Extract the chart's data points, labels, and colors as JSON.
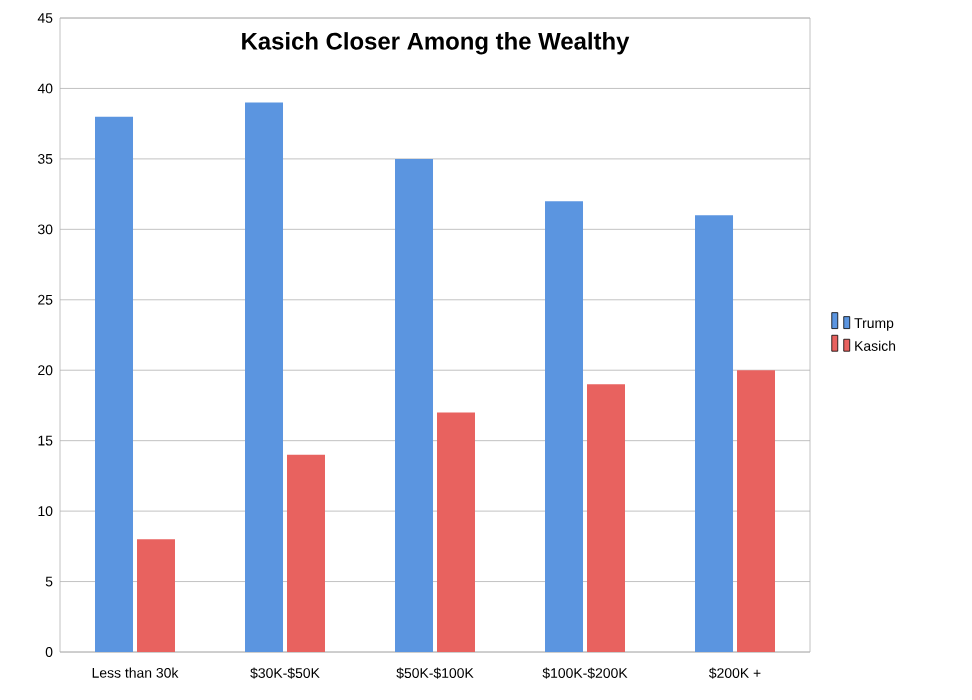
{
  "chart_data": {
    "type": "bar",
    "title": "Kasich Closer Among the Wealthy",
    "categories": [
      "Less than 30k",
      "$30K-$50K",
      "$50K-$100K",
      "$100K-$200K",
      "$200K +"
    ],
    "series": [
      {
        "name": "Trump",
        "color": "#5b95e0",
        "values": [
          38,
          39,
          35,
          32,
          31
        ]
      },
      {
        "name": "Kasich",
        "color": "#e8625f",
        "values": [
          8,
          14,
          17,
          19,
          20
        ]
      }
    ],
    "ylim": [
      0,
      45
    ],
    "yticks": [
      0,
      5,
      10,
      15,
      20,
      25,
      30,
      35,
      40,
      45
    ],
    "grid": "y",
    "legend": "right"
  }
}
